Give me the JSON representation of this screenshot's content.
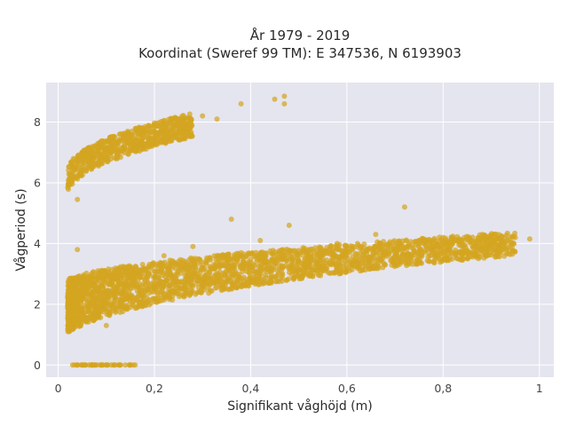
{
  "chart_data": {
    "type": "scatter",
    "title_line1": "År 1979 - 2019",
    "title_line2": "Koordinat (Sweref 99 TM): E 347536, N 6193903",
    "xlabel": "Signifikant våghöjd (m)",
    "ylabel": "Vågperiod (s)",
    "xlim": [
      -0.025,
      1.03
    ],
    "ylim": [
      -0.4,
      9.3
    ],
    "x_ticks": [
      0,
      0.2,
      0.4,
      0.6,
      0.8,
      1
    ],
    "x_tick_labels": [
      "0",
      "0,2",
      "0,4",
      "0,6",
      "0,8",
      "1"
    ],
    "y_ticks": [
      0,
      2,
      4,
      6,
      8
    ],
    "y_tick_labels": [
      "0",
      "2",
      "4",
      "6",
      "8"
    ],
    "grid": true,
    "marker_color": "#d4a520",
    "marker_opacity": 0.72,
    "clusters": [
      {
        "name": "lower-band",
        "x_range": [
          0.02,
          0.95
        ],
        "y_center_at_x0": 1.6,
        "y_center_at_x1": 4.0,
        "spread": 0.9
      },
      {
        "name": "upper-band",
        "x_range": [
          0.02,
          0.28
        ],
        "y_center_at_x0": 6.0,
        "y_center_at_x1": 7.9,
        "spread": 0.4
      },
      {
        "name": "zero-period",
        "x_range": [
          0.03,
          0.16
        ],
        "y_value": 0
      }
    ],
    "points": [
      [
        0.03,
        1.5
      ],
      [
        0.05,
        1.8
      ],
      [
        0.08,
        2.1
      ],
      [
        0.1,
        1.3
      ],
      [
        0.12,
        2.4
      ],
      [
        0.15,
        1.9
      ],
      [
        0.18,
        2.8
      ],
      [
        0.2,
        2.5
      ],
      [
        0.22,
        3.6
      ],
      [
        0.25,
        3.1
      ],
      [
        0.28,
        3.9
      ],
      [
        0.3,
        3.3
      ],
      [
        0.33,
        2.9
      ],
      [
        0.36,
        4.8
      ],
      [
        0.38,
        3.7
      ],
      [
        0.4,
        3.2
      ],
      [
        0.42,
        4.1
      ],
      [
        0.45,
        3.6
      ],
      [
        0.48,
        4.6
      ],
      [
        0.5,
        3.4
      ],
      [
        0.52,
        3.8
      ],
      [
        0.55,
        3.5
      ],
      [
        0.58,
        4.0
      ],
      [
        0.6,
        3.6
      ],
      [
        0.63,
        3.9
      ],
      [
        0.66,
        4.3
      ],
      [
        0.7,
        3.8
      ],
      [
        0.72,
        5.2
      ],
      [
        0.75,
        4.1
      ],
      [
        0.78,
        3.9
      ],
      [
        0.8,
        4.2
      ],
      [
        0.82,
        4.0
      ],
      [
        0.85,
        4.15
      ],
      [
        0.88,
        4.2
      ],
      [
        0.92,
        4.1
      ],
      [
        0.95,
        4.2
      ],
      [
        0.98,
        4.15
      ],
      [
        0.02,
        5.85
      ],
      [
        0.04,
        6.2
      ],
      [
        0.06,
        6.5
      ],
      [
        0.08,
        6.9
      ],
      [
        0.1,
        7.1
      ],
      [
        0.12,
        7.3
      ],
      [
        0.15,
        7.5
      ],
      [
        0.18,
        7.7
      ],
      [
        0.2,
        7.9
      ],
      [
        0.22,
        7.6
      ],
      [
        0.25,
        8.0
      ],
      [
        0.27,
        7.9
      ],
      [
        0.04,
        5.45
      ],
      [
        0.04,
        3.8
      ],
      [
        0.3,
        8.2
      ],
      [
        0.33,
        8.1
      ],
      [
        0.38,
        8.6
      ],
      [
        0.45,
        8.75
      ],
      [
        0.47,
        8.85
      ],
      [
        0.47,
        8.6
      ],
      [
        0.03,
        0
      ],
      [
        0.05,
        0
      ],
      [
        0.07,
        0
      ],
      [
        0.09,
        0
      ],
      [
        0.11,
        0
      ],
      [
        0.13,
        0
      ],
      [
        0.15,
        0
      ],
      [
        0.16,
        0
      ]
    ]
  }
}
